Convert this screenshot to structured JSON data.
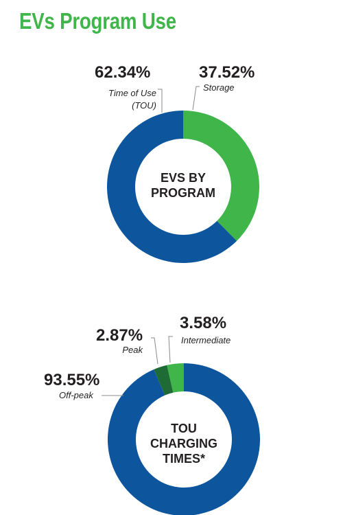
{
  "title": "EVs Program Use",
  "colors": {
    "title": "#3fb54a",
    "blue": "#0d559c",
    "green": "#3fb54a",
    "dark_green": "#1e6b35",
    "text": "#231f20"
  },
  "chart_data": [
    {
      "type": "pie",
      "center_label": [
        "EVS BY",
        "PROGRAM"
      ],
      "slices": [
        {
          "value": 37.52,
          "pct_label": "37.52%",
          "name": "Storage",
          "color": "#3fb54a"
        },
        {
          "value": 62.34,
          "pct_label": "62.34%",
          "name": "Time of Use (TOU)",
          "name_lines": [
            "Time of Use",
            "(TOU)"
          ],
          "color": "#0d559c"
        }
      ]
    },
    {
      "type": "pie",
      "center_label": [
        "TOU",
        "CHARGING",
        "TIMES*"
      ],
      "slices": [
        {
          "value": 93.55,
          "pct_label": "93.55%",
          "name": "Off-peak",
          "color": "#0d559c"
        },
        {
          "value": 2.87,
          "pct_label": "2.87%",
          "name": "Peak",
          "color": "#1e6b35"
        },
        {
          "value": 3.58,
          "pct_label": "3.58%",
          "name": "Intermediate",
          "color": "#3fb54a"
        }
      ]
    }
  ]
}
